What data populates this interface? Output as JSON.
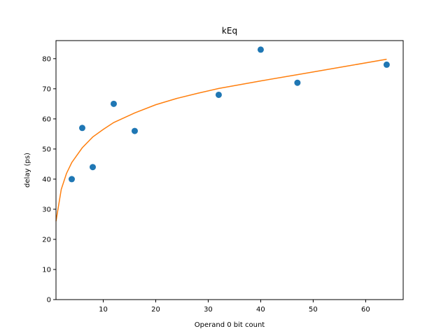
{
  "chart_data": {
    "type": "scatter",
    "title": "kEq",
    "xlabel": "Operand 0 bit count",
    "ylabel": "delay (ps)",
    "xlim": [
      1,
      67.15
    ],
    "ylim": [
      0,
      86
    ],
    "xticks": [
      10,
      20,
      30,
      40,
      50,
      60
    ],
    "yticks": [
      0,
      10,
      20,
      30,
      40,
      50,
      60,
      70,
      80
    ],
    "grid": false,
    "legend": "none",
    "colors": {
      "points": "#1f77b4",
      "fit": "#ff7f0e"
    },
    "series": [
      {
        "type": "scatter",
        "points": [
          {
            "x": 4,
            "y": 40
          },
          {
            "x": 6,
            "y": 57
          },
          {
            "x": 8,
            "y": 44
          },
          {
            "x": 12,
            "y": 65
          },
          {
            "x": 16,
            "y": 56
          },
          {
            "x": 32,
            "y": 68
          },
          {
            "x": 40,
            "y": 83
          },
          {
            "x": 47,
            "y": 72
          },
          {
            "x": 64,
            "y": 78
          }
        ]
      },
      {
        "type": "line",
        "x": [
          1,
          2,
          3,
          4,
          6,
          8,
          10,
          12,
          16,
          20,
          24,
          28,
          32,
          40,
          48,
          56,
          64
        ],
        "y": [
          26,
          36.6,
          41.9,
          45.5,
          50.4,
          54.0,
          56.5,
          58.8,
          62.0,
          64.7,
          66.8,
          68.5,
          70.1,
          72.6,
          75.0,
          77.4,
          79.8
        ]
      }
    ]
  }
}
